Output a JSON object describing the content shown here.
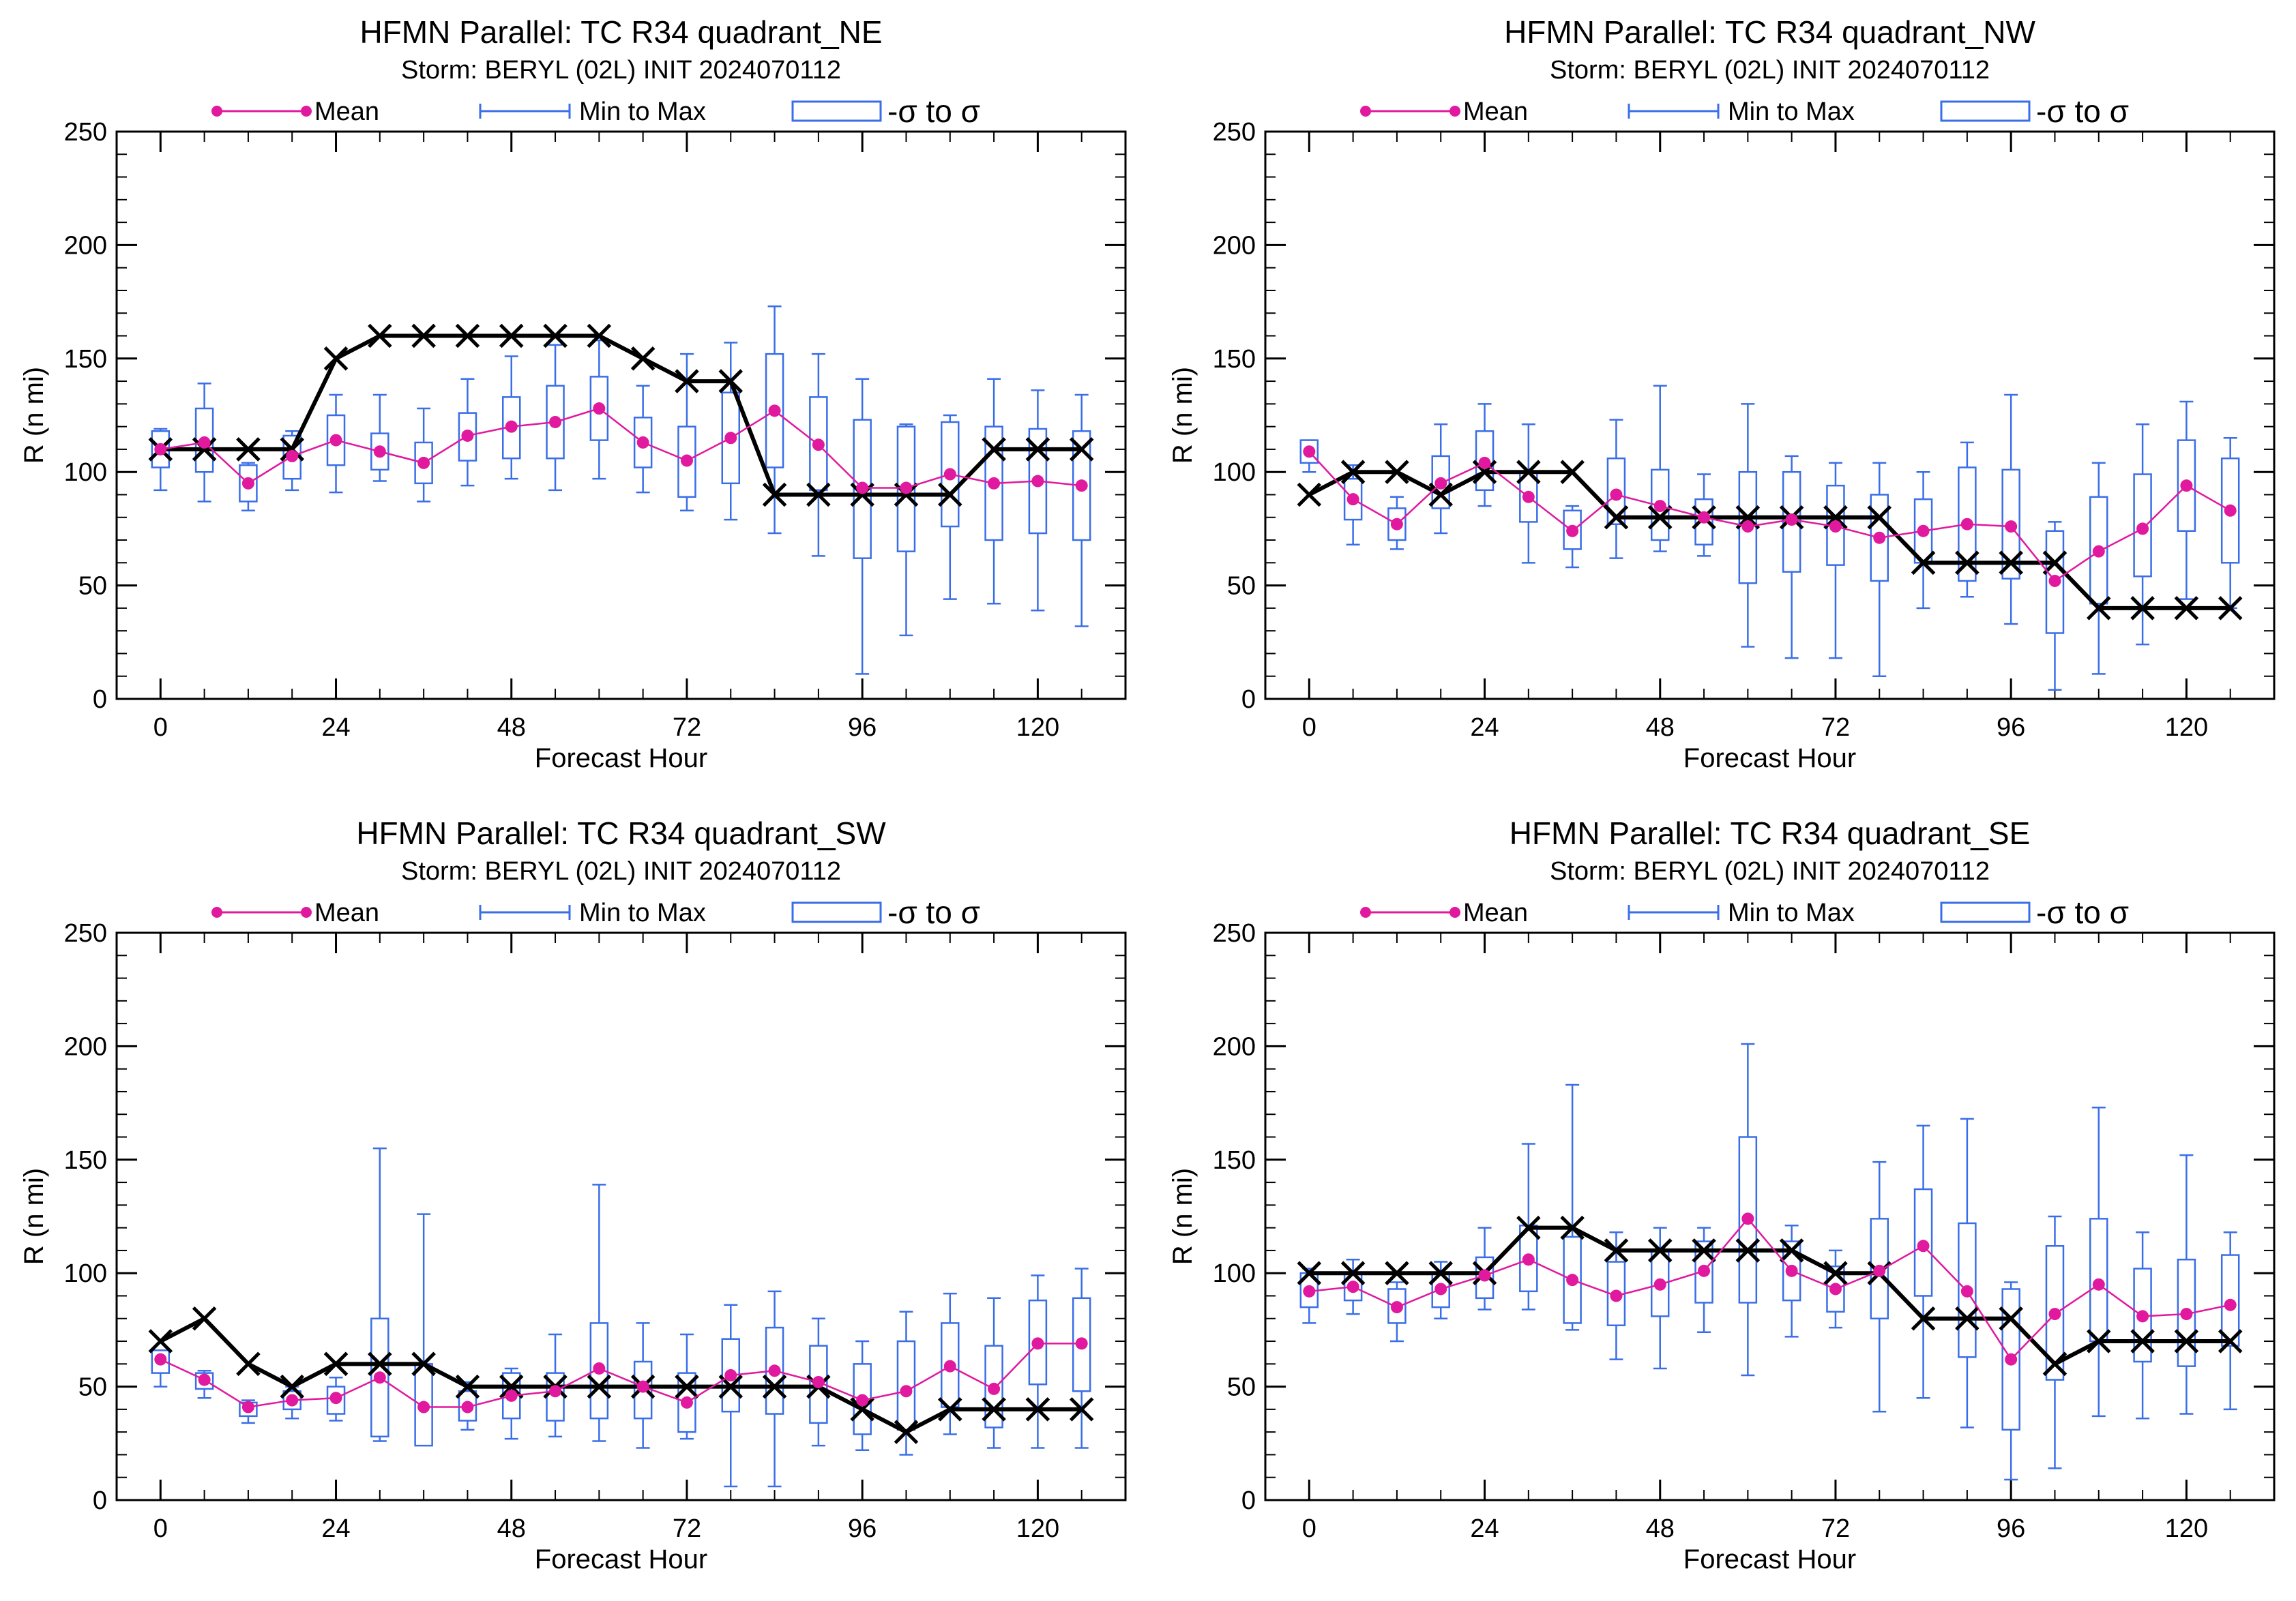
{
  "chart_data": [
    {
      "type": "box",
      "title": "HFMN Parallel: TC  R34 quadrant_NE",
      "subtitle": "Storm: BERYL (02L) INIT 2024070112",
      "xlabel": "Forecast Hour",
      "ylabel": "R (n mi)",
      "xlim": [
        -6,
        132
      ],
      "ylim": [
        0,
        250
      ],
      "xticks": [
        0,
        24,
        48,
        72,
        96,
        120
      ],
      "yticks": [
        0,
        50,
        100,
        150,
        200,
        250
      ],
      "legend": {
        "position": "top",
        "entries": [
          "Mean",
          "Min to Max",
          "-σ to σ"
        ]
      },
      "x": [
        0,
        6,
        12,
        18,
        24,
        30,
        36,
        42,
        48,
        54,
        60,
        66,
        72,
        78,
        84,
        90,
        96,
        102,
        108,
        114,
        120,
        126
      ],
      "series": [
        {
          "name": "Mean",
          "values": [
            110,
            113,
            95,
            107,
            114,
            109,
            104,
            116,
            120,
            122,
            128,
            113,
            105,
            115,
            127,
            112,
            93,
            93,
            99,
            95,
            96,
            94
          ]
        },
        {
          "name": "Min to Max",
          "min": [
            92,
            87,
            83,
            92,
            91,
            96,
            87,
            94,
            97,
            92,
            97,
            91,
            83,
            79,
            73,
            63,
            11,
            28,
            44,
            42,
            39,
            32
          ],
          "max": [
            119,
            139,
            104,
            118,
            134,
            134,
            128,
            141,
            151,
            156,
            158,
            138,
            152,
            157,
            173,
            152,
            141,
            121,
            125,
            141,
            136,
            134
          ]
        },
        {
          "name": "-σ to σ",
          "low": [
            102,
            100,
            87,
            97,
            103,
            101,
            95,
            105,
            106,
            106,
            114,
            102,
            89,
            95,
            102,
            92,
            62,
            65,
            76,
            70,
            73,
            70
          ],
          "high": [
            118,
            128,
            103,
            116,
            125,
            117,
            113,
            126,
            133,
            138,
            142,
            124,
            120,
            135,
            152,
            133,
            123,
            120,
            122,
            120,
            119,
            118
          ]
        },
        {
          "values": [
            110,
            110,
            110,
            110,
            150,
            160,
            160,
            160,
            160,
            160,
            160,
            150,
            140,
            140,
            90,
            90,
            90,
            90,
            90,
            110,
            110,
            110
          ]
        }
      ]
    },
    {
      "type": "box",
      "title": "HFMN Parallel: TC  R34 quadrant_NW",
      "subtitle": "Storm: BERYL (02L) INIT 2024070112",
      "xlabel": "Forecast Hour",
      "ylabel": "R (n mi)",
      "xlim": [
        -6,
        132
      ],
      "ylim": [
        0,
        250
      ],
      "xticks": [
        0,
        24,
        48,
        72,
        96,
        120
      ],
      "yticks": [
        0,
        50,
        100,
        150,
        200,
        250
      ],
      "legend": {
        "position": "top",
        "entries": [
          "Mean",
          "Min to Max",
          "-σ to σ"
        ]
      },
      "x": [
        0,
        6,
        12,
        18,
        24,
        30,
        36,
        42,
        48,
        54,
        60,
        66,
        72,
        78,
        84,
        90,
        96,
        102,
        108,
        114,
        120,
        126
      ],
      "series": [
        {
          "name": "Mean",
          "values": [
            109,
            88,
            77,
            95,
            104,
            89,
            74,
            90,
            85,
            80,
            76,
            79,
            76,
            71,
            74,
            77,
            76,
            52,
            65,
            75,
            94,
            83
          ]
        },
        {
          "name": "Min to Max",
          "min": [
            100,
            68,
            66,
            73,
            85,
            60,
            58,
            62,
            65,
            63,
            23,
            18,
            18,
            10,
            40,
            45,
            33,
            4,
            11,
            24,
            44,
            40
          ],
          "max": [
            114,
            103,
            89,
            121,
            130,
            121,
            85,
            123,
            138,
            99,
            130,
            107,
            104,
            104,
            100,
            113,
            134,
            78,
            104,
            121,
            131,
            115
          ]
        },
        {
          "name": "-σ to σ",
          "low": [
            104,
            79,
            70,
            84,
            92,
            78,
            66,
            77,
            70,
            68,
            51,
            56,
            59,
            52,
            60,
            52,
            53,
            29,
            42,
            54,
            74,
            60
          ],
          "high": [
            114,
            97,
            84,
            107,
            118,
            100,
            83,
            106,
            101,
            88,
            100,
            100,
            94,
            90,
            88,
            102,
            101,
            74,
            89,
            99,
            114,
            106
          ]
        },
        {
          "values": [
            90,
            100,
            100,
            90,
            100,
            100,
            100,
            80,
            80,
            80,
            80,
            80,
            80,
            80,
            60,
            60,
            60,
            60,
            40,
            40,
            40,
            40
          ]
        }
      ]
    },
    {
      "type": "box",
      "title": "HFMN Parallel: TC  R34 quadrant_SW",
      "subtitle": "Storm: BERYL (02L) INIT 2024070112",
      "xlabel": "Forecast Hour",
      "ylabel": "R (n mi)",
      "xlim": [
        -6,
        132
      ],
      "ylim": [
        0,
        250
      ],
      "xticks": [
        0,
        24,
        48,
        72,
        96,
        120
      ],
      "yticks": [
        0,
        50,
        100,
        150,
        200,
        250
      ],
      "legend": {
        "position": "top",
        "entries": [
          "Mean",
          "Min to Max",
          "-σ to σ"
        ]
      },
      "x": [
        0,
        6,
        12,
        18,
        24,
        30,
        36,
        42,
        48,
        54,
        60,
        66,
        72,
        78,
        84,
        90,
        96,
        102,
        108,
        114,
        120,
        126
      ],
      "series": [
        {
          "name": "Mean",
          "values": [
            62,
            53,
            41,
            44,
            45,
            54,
            41,
            41,
            46,
            48,
            58,
            50,
            43,
            55,
            57,
            52,
            44,
            48,
            59,
            49,
            69,
            69
          ]
        },
        {
          "name": "Min to Max",
          "min": [
            50,
            45,
            34,
            36,
            35,
            26,
            25,
            31,
            27,
            28,
            26,
            23,
            27,
            6,
            6,
            24,
            22,
            20,
            29,
            23,
            23,
            23
          ],
          " max": [
            65,
            57,
            44,
            50,
            54,
            155,
            126,
            52,
            58,
            73,
            139,
            78,
            73,
            86,
            92,
            80,
            70,
            83,
            91,
            89,
            99,
            102
          ]
        },
        {
          "name": "-σ to σ",
          "low": [
            56,
            49,
            37,
            40,
            38,
            28,
            24,
            35,
            36,
            35,
            36,
            36,
            30,
            39,
            38,
            34,
            29,
            31,
            41,
            32,
            51,
            48
          ],
          "high": [
            66,
            56,
            43,
            48,
            50,
            80,
            60,
            48,
            56,
            56,
            78,
            61,
            56,
            71,
            76,
            68,
            60,
            70,
            78,
            68,
            88,
            89
          ]
        },
        {
          "values": [
            70,
            80,
            60,
            50,
            60,
            60,
            60,
            50,
            50,
            50,
            50,
            50,
            50,
            50,
            50,
            50,
            40,
            30,
            40,
            40,
            40,
            40
          ]
        }
      ]
    },
    {
      "type": "box",
      "title": "HFMN Parallel: TC  R34 quadrant_SE",
      "subtitle": "Storm: BERYL (02L) INIT 2024070112",
      "xlabel": "Forecast Hour",
      "ylabel": "R (n mi)",
      "xlim": [
        -6,
        132
      ],
      "ylim": [
        0,
        250
      ],
      "xticks": [
        0,
        24,
        48,
        72,
        96,
        120
      ],
      "yticks": [
        0,
        50,
        100,
        150,
        200,
        250
      ],
      "legend": {
        "position": "top",
        "entries": [
          "Mean",
          "Min to Max",
          "-σ to σ"
        ]
      },
      "x": [
        0,
        6,
        12,
        18,
        24,
        30,
        36,
        42,
        48,
        54,
        60,
        66,
        72,
        78,
        84,
        90,
        96,
        102,
        108,
        114,
        120,
        126
      ],
      "series": [
        {
          "name": "Mean",
          "values": [
            92,
            94,
            85,
            93,
            99,
            106,
            97,
            90,
            95,
            101,
            124,
            101,
            93,
            101,
            112,
            92,
            62,
            82,
            95,
            81,
            82,
            86
          ]
        },
        {
          "name": "Min to Max",
          "min": [
            78,
            82,
            70,
            80,
            84,
            84,
            75,
            62,
            58,
            74,
            55,
            72,
            76,
            39,
            45,
            32,
            9,
            14,
            37,
            36,
            38,
            40
          ],
          "max": [
            102,
            106,
            96,
            105,
            120,
            157,
            183,
            118,
            120,
            120,
            201,
            121,
            110,
            149,
            165,
            168,
            96,
            125,
            173,
            118,
            152,
            118
          ]
        },
        {
          "name": "-σ to σ",
          "low": [
            85,
            88,
            78,
            85,
            89,
            92,
            78,
            77,
            81,
            87,
            87,
            88,
            83,
            80,
            90,
            63,
            31,
            53,
            70,
            61,
            59,
            68
          ],
          "high": [
            100,
            100,
            93,
            100,
            107,
            121,
            116,
            105,
            110,
            114,
            160,
            114,
            103,
            124,
            137,
            122,
            93,
            112,
            124,
            102,
            106,
            108
          ]
        },
        {
          "values": [
            100,
            100,
            100,
            100,
            100,
            120,
            120,
            110,
            110,
            110,
            110,
            110,
            100,
            100,
            80,
            80,
            80,
            60,
            70,
            70,
            70,
            70
          ]
        }
      ]
    }
  ],
  "colors": {
    "mean": "#e0199e",
    "range": "#3a6ee8",
    "best_track": "#000000"
  }
}
